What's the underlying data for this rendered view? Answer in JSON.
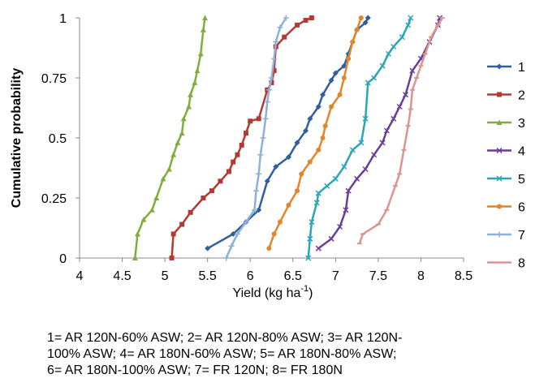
{
  "chart_data": {
    "type": "line",
    "xlabel": "Yield (kg ha",
    "xlabel_superscript": "-1",
    "xlabel_close": ")",
    "ylabel": "Cumulative probability",
    "xlim": [
      4,
      8.5
    ],
    "ylim": [
      0,
      1
    ],
    "x_ticks": [
      "4",
      "4.5",
      "5",
      "5.5",
      "6",
      "6.5",
      "7",
      "7.5",
      "8",
      "8.5"
    ],
    "y_ticks": [
      "0",
      "0.25",
      "0.5",
      "0.75",
      "1"
    ],
    "grid": false,
    "legend_position": "right",
    "series": [
      {
        "name": "1",
        "color": "#2f5f9e",
        "marker": "diamond",
        "x": [
          5.5,
          5.8,
          5.95,
          6.1,
          6.2,
          6.3,
          6.45,
          6.55,
          6.65,
          6.7,
          6.8,
          6.85,
          6.95,
          7.0,
          7.1,
          7.15,
          7.2,
          7.25,
          7.35,
          7.38
        ],
        "y": [
          0.04,
          0.1,
          0.15,
          0.2,
          0.32,
          0.38,
          0.42,
          0.48,
          0.53,
          0.58,
          0.63,
          0.68,
          0.74,
          0.77,
          0.8,
          0.85,
          0.9,
          0.95,
          0.98,
          1.0
        ]
      },
      {
        "name": "2",
        "color": "#b23a32",
        "marker": "square",
        "x": [
          5.08,
          5.1,
          5.2,
          5.3,
          5.45,
          5.55,
          5.65,
          5.75,
          5.8,
          5.85,
          5.9,
          5.95,
          6.0,
          6.1,
          6.2,
          6.25,
          6.28,
          6.3,
          6.4,
          6.55,
          6.65,
          6.72
        ],
        "y": [
          0.0,
          0.1,
          0.14,
          0.19,
          0.25,
          0.28,
          0.32,
          0.36,
          0.4,
          0.43,
          0.47,
          0.52,
          0.57,
          0.58,
          0.7,
          0.73,
          0.78,
          0.88,
          0.92,
          0.97,
          0.99,
          1.0
        ]
      },
      {
        "name": "3",
        "color": "#7fae3f",
        "marker": "triangle",
        "x": [
          4.65,
          4.68,
          4.75,
          4.85,
          4.9,
          4.98,
          5.05,
          5.1,
          5.15,
          5.2,
          5.22,
          5.28,
          5.3,
          5.35,
          5.38,
          5.42,
          5.45,
          5.47
        ],
        "y": [
          0.0,
          0.1,
          0.16,
          0.2,
          0.25,
          0.33,
          0.37,
          0.43,
          0.48,
          0.52,
          0.58,
          0.63,
          0.68,
          0.73,
          0.78,
          0.85,
          0.95,
          1.0
        ]
      },
      {
        "name": "4",
        "color": "#6a3f94",
        "marker": "x",
        "x": [
          6.8,
          6.95,
          7.05,
          7.12,
          7.15,
          7.25,
          7.35,
          7.45,
          7.55,
          7.6,
          7.68,
          7.75,
          7.82,
          7.9,
          8.0,
          8.1,
          8.2,
          8.22
        ],
        "y": [
          0.04,
          0.08,
          0.13,
          0.2,
          0.28,
          0.33,
          0.37,
          0.43,
          0.48,
          0.53,
          0.58,
          0.63,
          0.68,
          0.78,
          0.83,
          0.9,
          0.97,
          1.0
        ]
      },
      {
        "name": "5",
        "color": "#2aa6b8",
        "marker": "x",
        "x": [
          6.68,
          6.7,
          6.72,
          6.78,
          6.8,
          6.9,
          7.0,
          7.1,
          7.2,
          7.3,
          7.35,
          7.38,
          7.45,
          7.55,
          7.62,
          7.68,
          7.78,
          7.85,
          7.88
        ],
        "y": [
          0.0,
          0.08,
          0.15,
          0.23,
          0.27,
          0.3,
          0.33,
          0.38,
          0.45,
          0.48,
          0.58,
          0.73,
          0.75,
          0.8,
          0.85,
          0.88,
          0.92,
          0.97,
          1.0
        ]
      },
      {
        "name": "6",
        "color": "#e3862b",
        "marker": "circle",
        "x": [
          6.22,
          6.28,
          6.35,
          6.45,
          6.55,
          6.6,
          6.7,
          6.8,
          6.85,
          6.88,
          6.95,
          7.05,
          7.1,
          7.15,
          7.2,
          7.25,
          7.3
        ],
        "y": [
          0.04,
          0.1,
          0.15,
          0.22,
          0.28,
          0.35,
          0.4,
          0.45,
          0.5,
          0.55,
          0.63,
          0.68,
          0.75,
          0.83,
          0.9,
          0.95,
          1.0
        ]
      },
      {
        "name": "7",
        "color": "#8fb0dc",
        "marker": "cross",
        "x": [
          5.72,
          5.78,
          5.85,
          5.95,
          6.05,
          6.07,
          6.1,
          6.12,
          6.15,
          6.18,
          6.2,
          6.22,
          6.25,
          6.28,
          6.3,
          6.35,
          6.42
        ],
        "y": [
          0.0,
          0.05,
          0.1,
          0.15,
          0.2,
          0.28,
          0.35,
          0.43,
          0.5,
          0.58,
          0.65,
          0.7,
          0.75,
          0.83,
          0.9,
          0.96,
          1.0
        ]
      },
      {
        "name": "8",
        "color": "#d99690",
        "marker": "dash",
        "x": [
          7.28,
          7.32,
          7.5,
          7.6,
          7.7,
          7.75,
          7.8,
          7.85,
          7.88,
          7.9,
          7.95,
          8.0,
          8.05,
          8.12,
          8.2,
          8.25
        ],
        "y": [
          0.06,
          0.1,
          0.14,
          0.2,
          0.3,
          0.35,
          0.45,
          0.55,
          0.62,
          0.7,
          0.75,
          0.8,
          0.85,
          0.92,
          0.97,
          1.0
        ]
      }
    ]
  },
  "caption": {
    "line1": "1= AR 120N-60% ASW; 2= AR 120N-80% ASW; 3= AR 120N-",
    "line2": "100% ASW; 4= AR 180N-60% ASW; 5= AR 180N-80% ASW;",
    "line3": "6= AR 180N-100% ASW; 7= FR 120N; 8= FR 180N"
  }
}
